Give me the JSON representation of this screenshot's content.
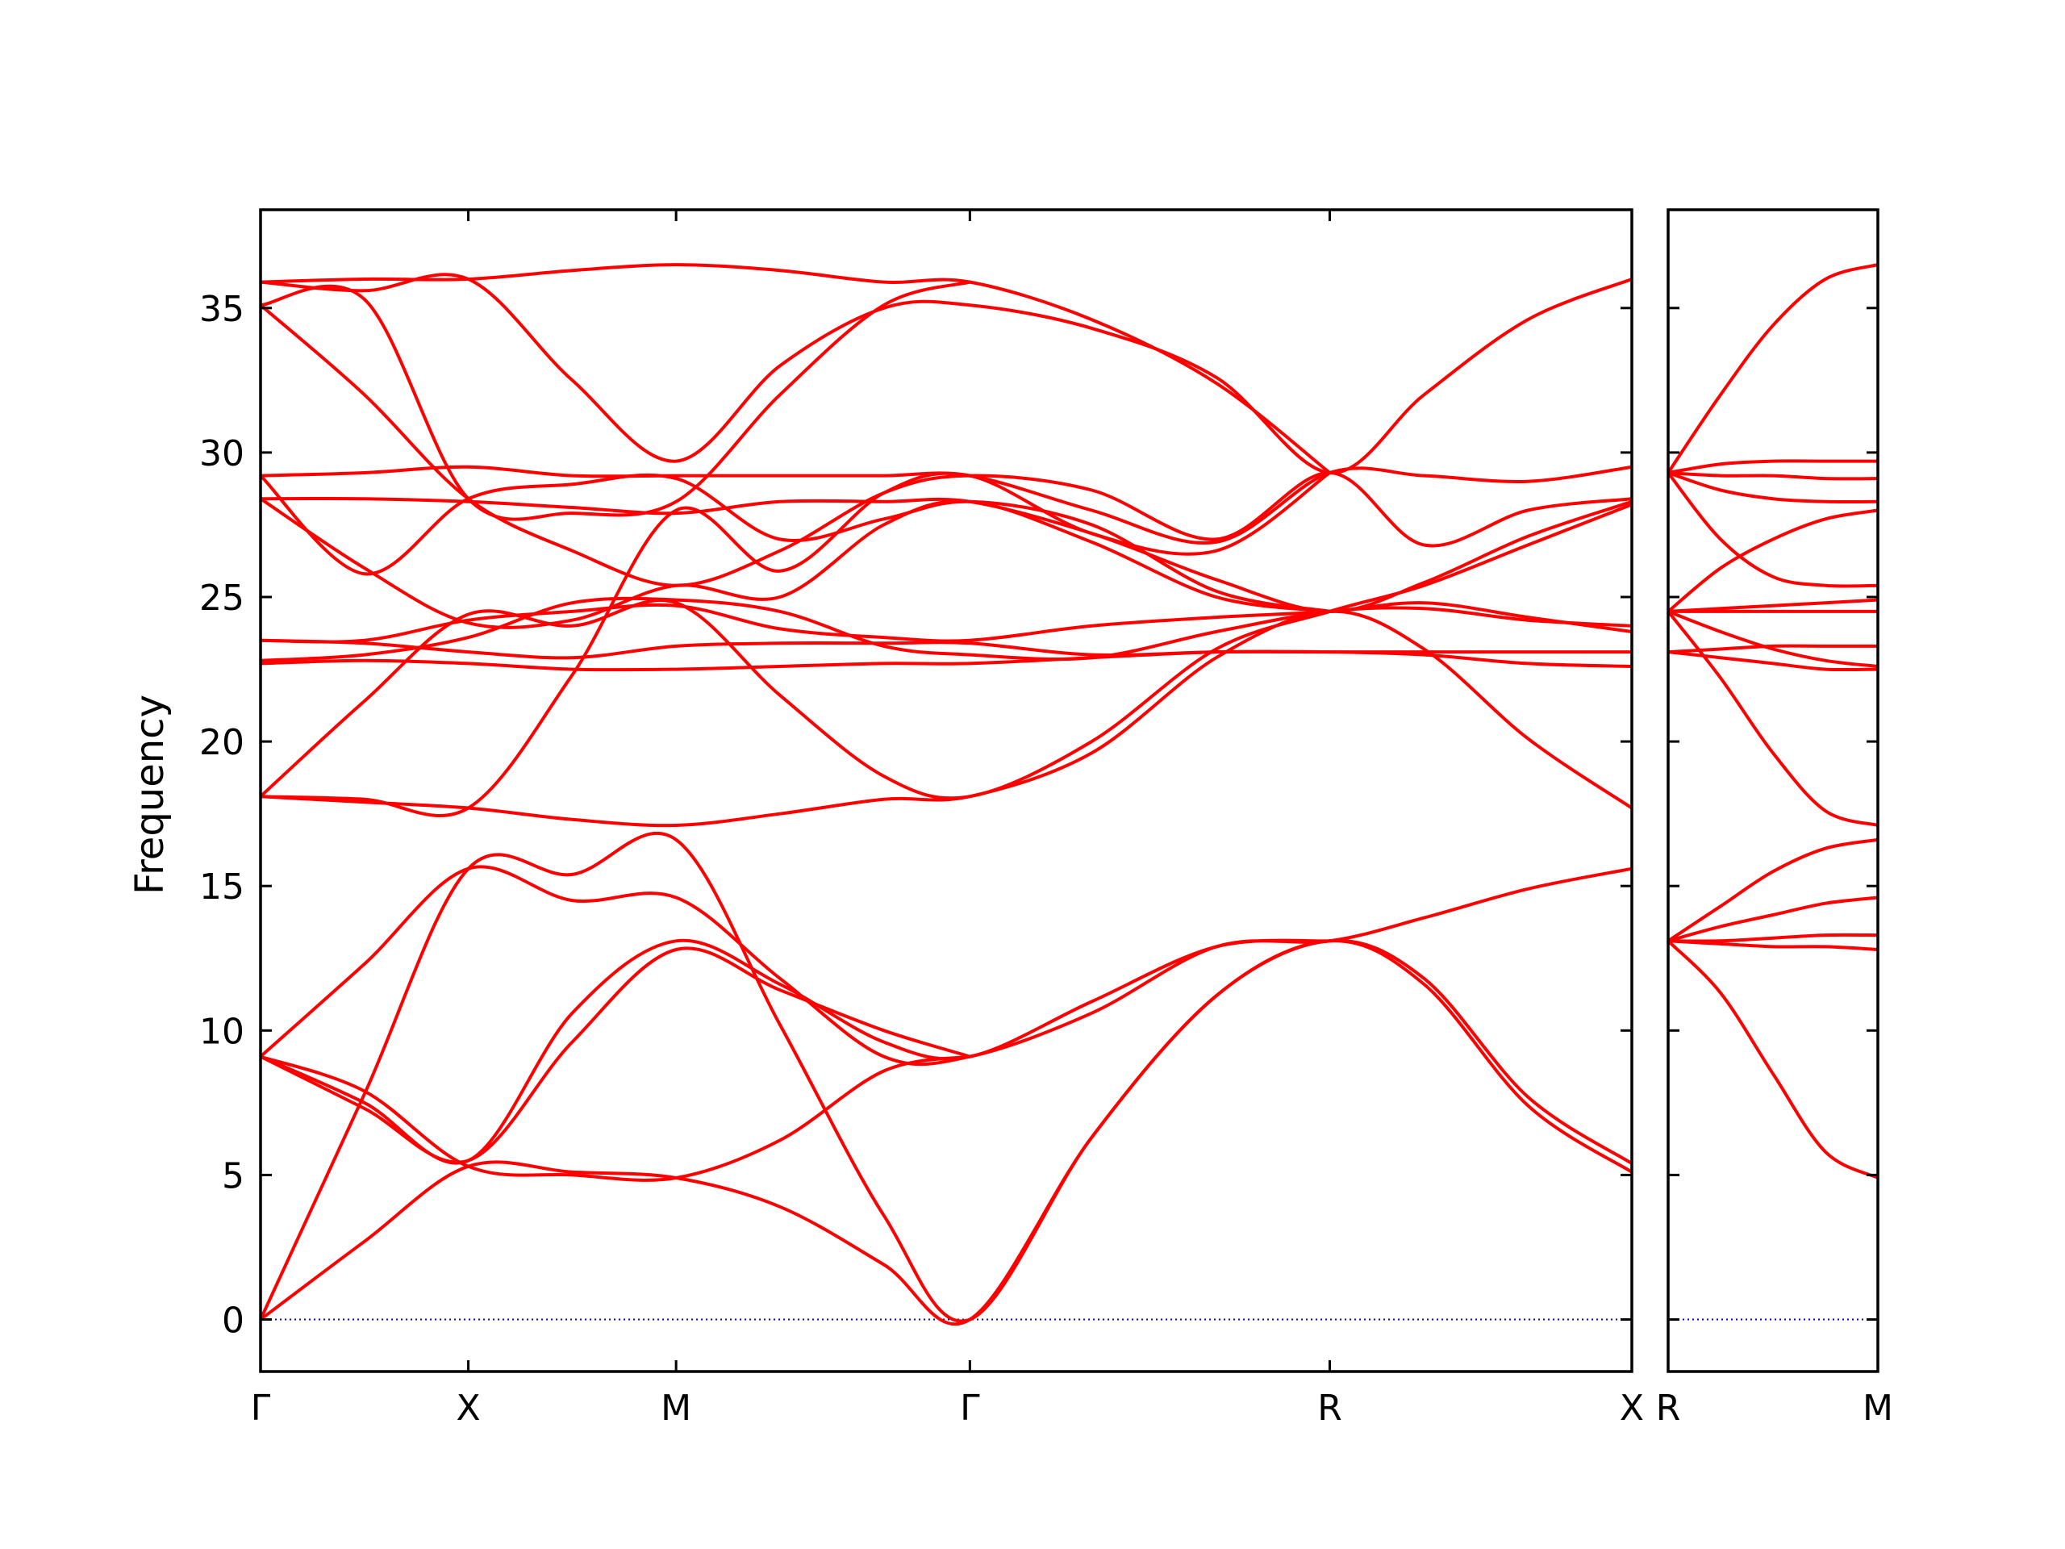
{
  "chart_data": {
    "type": "line",
    "title": "",
    "ylabel": "Frequency",
    "xlabel": "",
    "ylim": [
      -1.8,
      38.4
    ],
    "yticks": [
      0,
      5,
      10,
      15,
      20,
      25,
      30,
      35
    ],
    "ytick_labels": [
      "0",
      "5",
      "10",
      "15",
      "20",
      "25",
      "30",
      "35"
    ],
    "band_color": "#ff0000",
    "zero_line_color": "#0000cc",
    "grid": false,
    "panels": [
      {
        "xlim": [
          0,
          6.6
        ],
        "high_symmetry_points": [
          {
            "label": "Γ",
            "x": 0
          },
          {
            "label": "X",
            "x": 1
          },
          {
            "label": "M",
            "x": 2
          },
          {
            "label": "Γ",
            "x": 3.414
          },
          {
            "label": "R",
            "x": 5.146
          },
          {
            "label": "X",
            "x": 6.6
          }
        ],
        "bands": [
          {
            "x": [
              0,
              0.5,
              1,
              1.5,
              2,
              2.5,
              3,
              3.414,
              4.0,
              4.6,
              5.146,
              5.6,
              6.1,
              6.6
            ],
            "y": [
              0,
              7.8,
              15.6,
              15.4,
              16.6,
              10.2,
              3.6,
              0,
              6.3,
              11.2,
              13.1,
              11.6,
              7.4,
              5.1
            ]
          },
          {
            "x": [
              0,
              0.5,
              1,
              1.5,
              2,
              2.5,
              3,
              3.414,
              4.0,
              4.6,
              5.146,
              5.6,
              6.1,
              6.6
            ],
            "y": [
              0,
              2.7,
              5.3,
              5.1,
              4.9,
              3.9,
              1.9,
              0,
              6.3,
              11.2,
              13.1,
              11.8,
              7.7,
              5.4
            ]
          },
          {
            "x": [
              0,
              0.5,
              1,
              1.5,
              2,
              2.5,
              3,
              3.414,
              4.0,
              4.6,
              5.146,
              5.6,
              6.1,
              6.6
            ],
            "y": [
              9.1,
              12.3,
              15.6,
              14.5,
              14.6,
              11.8,
              9.1,
              9.1,
              10.6,
              12.9,
              13.1,
              13.9,
              14.9,
              15.6
            ]
          },
          {
            "x": [
              0,
              0.5,
              1,
              1.5,
              2,
              2.5,
              3,
              3.414,
              4.0,
              4.6,
              5.146
            ],
            "y": [
              9.1,
              7.5,
              5.5,
              10.6,
              13.1,
              11.6,
              9.6,
              9.1,
              11.0,
              12.9,
              13.1
            ]
          },
          {
            "x": [
              0,
              0.5,
              1,
              1.5,
              2,
              2.5,
              3,
              3.414
            ],
            "y": [
              9.1,
              7.9,
              5.3,
              5.0,
              4.9,
              6.2,
              8.6,
              9.1
            ]
          },
          {
            "x": [
              0,
              0.5,
              1,
              1.5,
              2,
              2.5,
              3,
              3.414
            ],
            "y": [
              9.1,
              7.3,
              5.5,
              9.6,
              12.8,
              11.4,
              10.0,
              9.1
            ]
          },
          {
            "x": [
              0,
              0.5,
              1,
              1.5,
              2,
              2.5,
              3,
              3.414,
              4.0,
              4.6,
              5.146,
              5.6,
              6.1,
              6.6
            ],
            "y": [
              18.1,
              17.9,
              17.7,
              17.3,
              17.1,
              17.5,
              18.0,
              18.1,
              19.6,
              22.9,
              24.5,
              23.2,
              20.1,
              17.7
            ]
          },
          {
            "x": [
              0,
              0.5,
              1,
              1.5,
              2,
              2.5,
              3,
              3.414,
              4.0,
              4.6,
              5.146,
              5.6,
              6.1,
              6.6
            ],
            "y": [
              18.1,
              21.4,
              24.4,
              24.0,
              24.8,
              21.6,
              18.8,
              18.1,
              20.0,
              23.2,
              24.5,
              25.4,
              26.8,
              28.2
            ]
          },
          {
            "x": [
              0,
              0.5,
              1,
              1.5,
              2,
              2.5,
              3,
              3.414,
              4.0,
              4.6,
              5.146
            ],
            "y": [
              18.1,
              18.0,
              17.7,
              22.3,
              28.0,
              25.9,
              28.6,
              29.2,
              27.2,
              26.6,
              29.3
            ]
          },
          {
            "x": [
              0,
              0.5,
              1,
              1.5,
              2,
              2.5,
              3,
              3.414,
              4.0,
              4.6,
              5.146,
              5.6,
              6.1,
              6.6
            ],
            "y": [
              22.7,
              22.8,
              22.7,
              22.5,
              22.5,
              22.6,
              22.7,
              22.7,
              22.9,
              23.1,
              23.1,
              23.0,
              22.7,
              22.6
            ]
          },
          {
            "x": [
              0,
              0.5,
              1,
              1.5,
              2,
              2.5,
              3,
              3.414,
              4.0,
              4.6,
              5.146,
              5.6,
              6.1,
              6.6
            ],
            "y": [
              23.5,
              23.4,
              23.1,
              22.9,
              23.3,
              23.4,
              23.4,
              23.4,
              23.0,
              23.1,
              23.1,
              23.1,
              23.1,
              23.1
            ]
          },
          {
            "x": [
              0,
              0.5,
              1,
              1.5,
              2,
              2.5,
              3,
              3.414,
              4.0,
              4.6,
              5.146,
              5.6,
              6.1,
              6.6
            ],
            "y": [
              23.5,
              23.5,
              24.2,
              24.5,
              24.7,
              23.9,
              23.6,
              23.5,
              24.0,
              24.3,
              24.5,
              24.8,
              24.3,
              23.8
            ]
          },
          {
            "x": [
              0,
              0.5,
              1,
              1.5,
              2,
              2.5,
              3,
              3.414,
              4.0,
              4.6,
              5.146,
              5.6,
              6.1,
              6.6
            ],
            "y": [
              22.8,
              23.0,
              23.6,
              24.8,
              24.9,
              24.5,
              23.3,
              23.0,
              22.9,
              23.8,
              24.5,
              24.6,
              24.2,
              24.0
            ]
          },
          {
            "x": [
              0,
              0.5,
              1,
              1.5,
              2,
              2.5,
              3,
              3.414,
              4.0,
              4.6,
              5.146
            ],
            "y": [
              28.4,
              26.0,
              24.1,
              24.2,
              25.4,
              25.0,
              27.5,
              28.3,
              26.9,
              25.0,
              24.5
            ]
          },
          {
            "x": [
              0,
              0.5,
              1,
              1.5,
              2,
              2.5,
              3,
              3.414,
              4.0,
              4.6,
              5.146
            ],
            "y": [
              29.2,
              25.8,
              28.4,
              28.9,
              29.1,
              27.0,
              27.7,
              28.3,
              27.5,
              25.2,
              24.5
            ]
          },
          {
            "x": [
              0,
              0.5,
              1,
              1.5,
              2,
              2.5,
              3,
              3.414,
              4.0,
              4.6,
              5.146,
              5.6,
              6.1,
              6.6
            ],
            "y": [
              28.4,
              28.4,
              28.3,
              28.1,
              27.9,
              28.3,
              28.3,
              28.3,
              27.2,
              25.6,
              24.5,
              25.5,
              27.1,
              28.3
            ]
          },
          {
            "x": [
              0,
              0.5,
              1,
              1.5,
              2,
              2.5,
              3,
              3.414,
              4.0,
              4.6,
              5.146,
              5.6,
              6.1,
              6.6
            ],
            "y": [
              29.2,
              29.3,
              29.5,
              29.2,
              29.2,
              29.2,
              29.2,
              29.2,
              28.0,
              26.9,
              29.3,
              29.2,
              29.0,
              29.5
            ]
          },
          {
            "x": [
              0,
              0.5,
              1,
              1.5,
              2,
              2.5,
              3,
              3.414,
              4.0,
              4.6,
              5.146,
              5.6,
              6.1,
              6.6
            ],
            "y": [
              35.1,
              32.0,
              28.4,
              26.6,
              25.4,
              26.6,
              28.6,
              29.2,
              28.7,
              27.0,
              29.3,
              26.8,
              28.0,
              28.4
            ]
          },
          {
            "x": [
              0,
              0.5,
              1,
              1.5,
              2,
              2.5,
              3,
              3.414,
              4.0,
              4.6,
              5.146,
              5.6,
              6.1,
              6.6
            ],
            "y": [
              35.9,
              35.6,
              36.0,
              32.5,
              29.7,
              33.0,
              35.0,
              35.1,
              34.3,
              32.6,
              29.3,
              32.0,
              34.6,
              36.0
            ]
          },
          {
            "x": [
              0,
              0.5,
              1,
              1.5,
              2,
              2.5,
              3,
              3.414,
              4.0,
              4.6,
              5.146
            ],
            "y": [
              35.9,
              36.0,
              36.0,
              36.3,
              36.5,
              36.3,
              35.9,
              35.9,
              34.6,
              32.4,
              29.3
            ]
          },
          {
            "x": [
              0,
              0.5,
              1,
              1.5,
              2,
              2.5,
              3,
              3.414
            ],
            "y": [
              35.1,
              35.3,
              28.4,
              27.9,
              28.3,
              32.0,
              35.1,
              35.9
            ]
          }
        ]
      },
      {
        "xlim": [
          0,
          1
        ],
        "high_symmetry_points": [
          {
            "label": "R",
            "x": 0
          },
          {
            "label": "M",
            "x": 1
          }
        ],
        "bands": [
          {
            "x": [
              0,
              0.25,
              0.5,
              0.75,
              1
            ],
            "y": [
              13.1,
              11.3,
              8.5,
              5.8,
              4.9
            ]
          },
          {
            "x": [
              0,
              0.25,
              0.5,
              0.75,
              1
            ],
            "y": [
              13.1,
              13.0,
              12.9,
              12.9,
              12.8
            ]
          },
          {
            "x": [
              0,
              0.25,
              0.5,
              0.75,
              1
            ],
            "y": [
              13.1,
              13.1,
              13.2,
              13.3,
              13.3
            ]
          },
          {
            "x": [
              0,
              0.25,
              0.5,
              0.75,
              1
            ],
            "y": [
              13.1,
              13.6,
              14.0,
              14.4,
              14.6
            ]
          },
          {
            "x": [
              0,
              0.25,
              0.5,
              0.75,
              1
            ],
            "y": [
              13.1,
              14.3,
              15.5,
              16.3,
              16.6
            ]
          },
          {
            "x": [
              0,
              0.25,
              0.5,
              0.75,
              1
            ],
            "y": [
              24.5,
              22.2,
              19.6,
              17.6,
              17.1
            ]
          },
          {
            "x": [
              0,
              0.25,
              0.5,
              0.75,
              1
            ],
            "y": [
              23.1,
              23.2,
              23.3,
              23.3,
              23.3
            ]
          },
          {
            "x": [
              0,
              0.25,
              0.5,
              0.75,
              1
            ],
            "y": [
              23.1,
              22.9,
              22.7,
              22.5,
              22.5
            ]
          },
          {
            "x": [
              0,
              0.25,
              0.5,
              0.75,
              1
            ],
            "y": [
              24.5,
              23.8,
              23.2,
              22.8,
              22.6
            ]
          },
          {
            "x": [
              0,
              0.25,
              0.5,
              0.75,
              1
            ],
            "y": [
              24.5,
              24.5,
              24.5,
              24.5,
              24.5
            ]
          },
          {
            "x": [
              0,
              0.25,
              0.5,
              0.75,
              1
            ],
            "y": [
              24.5,
              24.6,
              24.7,
              24.8,
              24.9
            ]
          },
          {
            "x": [
              0,
              0.25,
              0.5,
              0.75,
              1
            ],
            "y": [
              24.5,
              26.0,
              27.0,
              27.7,
              28.0
            ]
          },
          {
            "x": [
              0,
              0.25,
              0.5,
              0.75,
              1
            ],
            "y": [
              29.3,
              27.0,
              25.7,
              25.4,
              25.4
            ]
          },
          {
            "x": [
              0,
              0.25,
              0.5,
              0.75,
              1
            ],
            "y": [
              29.3,
              28.7,
              28.4,
              28.3,
              28.3
            ]
          },
          {
            "x": [
              0,
              0.25,
              0.5,
              0.75,
              1
            ],
            "y": [
              29.3,
              29.2,
              29.2,
              29.1,
              29.1
            ]
          },
          {
            "x": [
              0,
              0.25,
              0.5,
              0.75,
              1
            ],
            "y": [
              29.3,
              29.6,
              29.7,
              29.7,
              29.7
            ]
          },
          {
            "x": [
              0,
              0.25,
              0.5,
              0.75,
              1
            ],
            "y": [
              29.3,
              32.0,
              34.4,
              36.0,
              36.5
            ]
          }
        ]
      }
    ]
  }
}
